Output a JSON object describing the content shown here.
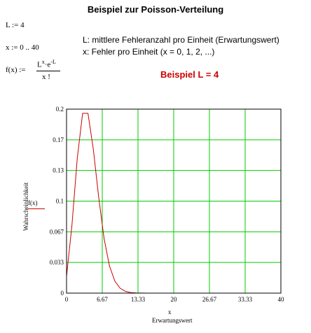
{
  "title": "Beispiel zur Poisson-Verteilung",
  "definitions": {
    "L_def": "L := 4",
    "x_def": "x := 0 .. 40",
    "f_lhs": "f(x) :=",
    "f_num_base1": "L",
    "f_num_exp1": "x",
    "f_num_dot": "·e",
    "f_num_exp2": "-L",
    "f_den": "x !"
  },
  "descriptions": {
    "line1": "L: mittlere Fehleranzahl pro Einheit (Erwartungswert)",
    "line2": "x: Fehler pro Einheit (x = 0, 1, 2, ...)",
    "example": "Beispiel L = 4"
  },
  "colors": {
    "grid": "#00cc00",
    "curve": "#cc0000",
    "example": "#cc0000"
  },
  "chart_data": {
    "type": "line",
    "x": [
      0,
      1,
      2,
      3,
      4,
      5,
      6,
      7,
      8,
      9,
      10,
      11,
      12,
      13,
      14,
      15,
      16,
      17,
      18,
      19,
      20,
      21,
      22,
      23,
      24,
      25,
      26,
      27,
      28,
      29,
      30,
      31,
      32,
      33,
      34,
      35,
      36,
      37,
      38,
      39,
      40
    ],
    "series": [
      {
        "legend_label": "f(x)",
        "values": [
          0.0183,
          0.0733,
          0.1465,
          0.1954,
          0.1954,
          0.1563,
          0.1042,
          0.0595,
          0.0298,
          0.0132,
          0.0053,
          0.0019,
          0.0006,
          0.0002,
          0.0001,
          0,
          0,
          0,
          0,
          0,
          0,
          0,
          0,
          0,
          0,
          0,
          0,
          0,
          0,
          0,
          0,
          0,
          0,
          0,
          0,
          0,
          0,
          0,
          0,
          0,
          0
        ]
      }
    ],
    "xlim": [
      0,
      40
    ],
    "ylim": [
      0,
      0.2
    ],
    "xticks": [
      "0",
      "6.67",
      "13.33",
      "20",
      "26.67",
      "33.33",
      "40"
    ],
    "yticks": [
      "0",
      "0.033",
      "0.067",
      "0.1",
      "0.13",
      "0.17",
      "0.2"
    ],
    "xlabel": "x",
    "xlabel2": "Erwartungswert",
    "ylabel": "Wahrscheinlichkeit",
    "grid": true
  }
}
